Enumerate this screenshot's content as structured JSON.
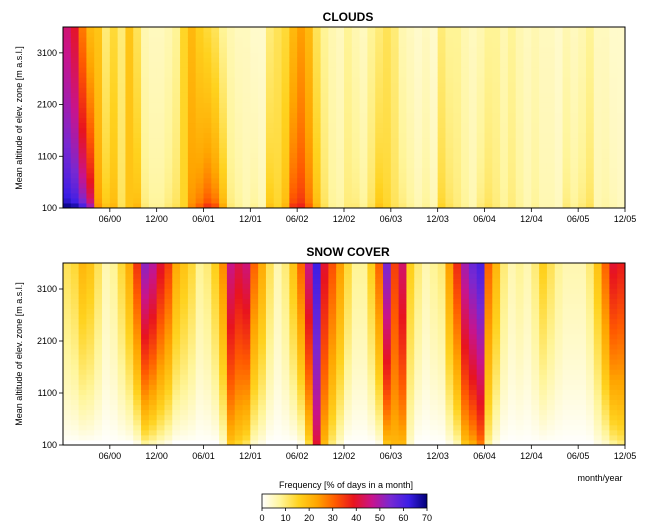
{
  "chart_data": [
    {
      "type": "heatmap",
      "title": "CLOUDS",
      "ylabel": "Mean altitude of elev. zone [m a.s.l.]",
      "x_tick_labels": [
        "06/00",
        "12/00",
        "06/01",
        "12/01",
        "06/02",
        "12/02",
        "06/03",
        "12/03",
        "06/04",
        "12/04",
        "06/05",
        "12/05"
      ],
      "x_range": [
        "01/00",
        "12/05"
      ],
      "y_tick_labels": [
        "100",
        "1100",
        "2100",
        "3100"
      ],
      "y_range": [
        100,
        3600
      ],
      "months": 72,
      "elevation_zones": 36,
      "zone_step_m": 100,
      "monthly_low_zone_frequency": [
        68,
        66,
        60,
        50,
        25,
        18,
        20,
        12,
        18,
        20,
        10,
        8,
        8,
        10,
        12,
        15,
        26,
        30,
        35,
        32,
        22,
        10,
        8,
        6,
        8,
        6,
        18,
        15,
        20,
        35,
        37,
        30,
        20,
        12,
        8,
        7,
        10,
        10,
        8,
        12,
        18,
        15,
        12,
        10,
        8,
        6,
        8,
        6,
        15,
        12,
        10,
        8,
        6,
        10,
        12,
        10,
        8,
        10,
        8,
        6,
        8,
        6,
        6,
        5,
        10,
        8,
        10,
        12,
        6,
        7,
        6,
        5
      ],
      "monthly_high_zone_frequency": [
        45,
        40,
        28,
        20,
        18,
        10,
        14,
        10,
        18,
        12,
        6,
        5,
        5,
        6,
        8,
        15,
        20,
        16,
        14,
        12,
        8,
        6,
        5,
        5,
        4,
        4,
        10,
        12,
        14,
        20,
        24,
        20,
        12,
        8,
        6,
        5,
        8,
        6,
        5,
        8,
        10,
        12,
        10,
        6,
        5,
        4,
        5,
        4,
        10,
        8,
        8,
        6,
        5,
        6,
        8,
        8,
        6,
        8,
        6,
        5,
        6,
        5,
        5,
        4,
        6,
        5,
        6,
        8,
        5,
        5,
        4,
        4
      ],
      "colorbar_ticks": [
        0,
        10,
        20,
        30,
        40,
        50,
        60,
        70
      ]
    },
    {
      "type": "heatmap",
      "title": "SNOW COVER",
      "ylabel": "Mean altitude of elev. zone [m a.s.l.]",
      "xlabel": "month/year",
      "x_tick_labels": [
        "06/00",
        "12/00",
        "06/01",
        "12/01",
        "06/02",
        "12/02",
        "06/03",
        "12/03",
        "06/04",
        "12/04",
        "06/05",
        "12/05"
      ],
      "x_range": [
        "01/00",
        "12/05"
      ],
      "y_tick_labels": [
        "100",
        "1100",
        "2100",
        "3100"
      ],
      "y_range": [
        100,
        3600
      ],
      "months": 72,
      "elevation_zones": 36,
      "zone_step_m": 100,
      "monthly_high_zone_frequency": [
        12,
        14,
        20,
        18,
        12,
        6,
        8,
        14,
        22,
        35,
        52,
        48,
        40,
        34,
        22,
        18,
        14,
        8,
        10,
        16,
        26,
        46,
        42,
        45,
        30,
        22,
        12,
        6,
        10,
        18,
        30,
        46,
        62,
        40,
        32,
        24,
        14,
        8,
        8,
        16,
        30,
        54,
        34,
        44,
        16,
        10,
        6,
        8,
        10,
        24,
        36,
        50,
        56,
        60,
        30,
        20,
        10,
        6,
        8,
        6,
        10,
        16,
        12,
        8,
        6,
        6,
        6,
        10,
        18,
        30,
        40,
        38
      ],
      "monthly_low_zone_frequency": [
        0,
        0,
        0,
        0,
        0,
        0,
        0,
        0,
        0,
        2,
        8,
        6,
        4,
        2,
        0,
        0,
        0,
        0,
        0,
        0,
        4,
        18,
        15,
        12,
        4,
        2,
        0,
        0,
        0,
        0,
        2,
        14,
        40,
        20,
        10,
        4,
        0,
        0,
        0,
        0,
        2,
        18,
        20,
        20,
        4,
        0,
        0,
        0,
        0,
        2,
        6,
        18,
        22,
        28,
        8,
        2,
        0,
        0,
        0,
        0,
        0,
        0,
        0,
        0,
        0,
        0,
        0,
        0,
        2,
        4,
        8,
        10
      ],
      "colorbar_ticks": [
        0,
        10,
        20,
        30,
        40,
        50,
        60,
        70
      ]
    }
  ],
  "colorbar": {
    "title": "Frequency [% of days in a month]",
    "ticks": [
      "0",
      "10",
      "20",
      "30",
      "40",
      "50",
      "60",
      "70"
    ],
    "range": [
      0,
      70
    ],
    "colors": [
      "#ffffff",
      "#fff59a",
      "#ffd21e",
      "#ffa500",
      "#ff5a00",
      "#e8141e",
      "#c8148c",
      "#7828d2",
      "#3c1ee6",
      "#000078"
    ]
  }
}
